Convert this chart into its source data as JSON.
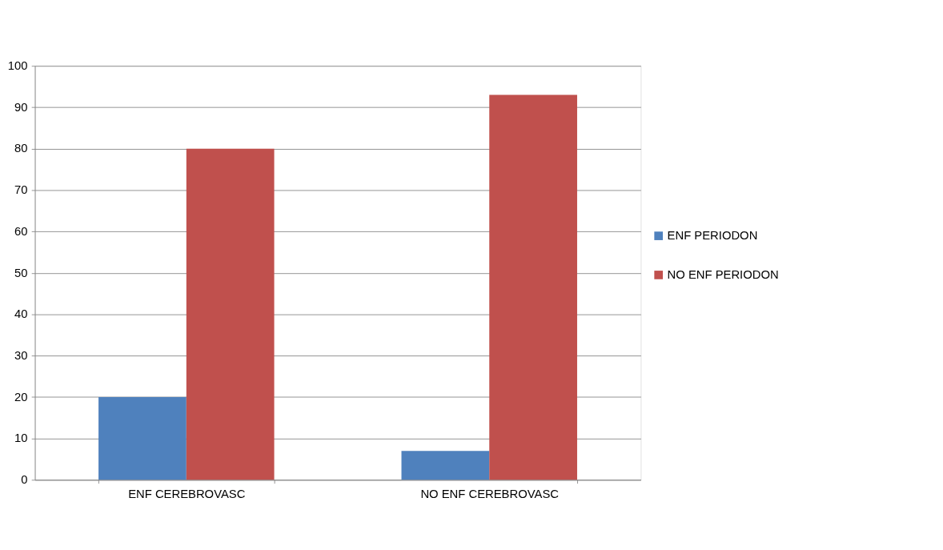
{
  "chart_data": {
    "type": "bar",
    "categories": [
      "ENF CEREBROVASC",
      "NO ENF CEREBROVASC"
    ],
    "series": [
      {
        "name": "ENF PERIODON",
        "color": "#4f81bd",
        "values": [
          20,
          7
        ]
      },
      {
        "name": "NO ENF PERIODON",
        "color": "#c0504d",
        "values": [
          80,
          93
        ]
      }
    ],
    "ylim": [
      0,
      100
    ],
    "yticks": [
      0,
      10,
      20,
      30,
      40,
      50,
      60,
      70,
      80,
      90,
      100
    ],
    "grid": "y",
    "legend": "right"
  }
}
